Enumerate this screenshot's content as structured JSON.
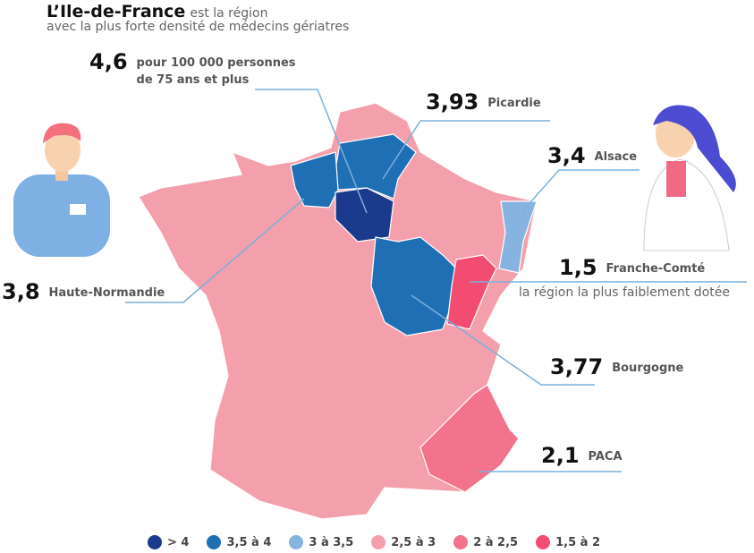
{
  "header": {
    "highlight": "L’Ile-de-France",
    "rest": "est la région",
    "subtitle": "avec la plus forte densité de médecins gériatres"
  },
  "callouts": [
    {
      "value": "4,6",
      "label": [
        "pour 100 000 personnes",
        "de 75 ans et plus"
      ]
    },
    {
      "value": "3,93",
      "label": [
        "Picardie"
      ]
    },
    {
      "value": "3,4",
      "label": [
        "Alsace"
      ]
    },
    {
      "value": "3,8",
      "label": [
        "Haute-Normandie"
      ]
    },
    {
      "value": "1,5",
      "label": [
        "Franche-Comté"
      ],
      "note": "la région la plus faiblement dotée"
    },
    {
      "value": "3,77",
      "label": [
        "Bourgogne"
      ]
    },
    {
      "value": "2,1",
      "label": [
        "PACA"
      ]
    }
  ],
  "legend": [
    {
      "label": "> 4",
      "color": "#1b3a8c"
    },
    {
      "label": "3,5 à 4",
      "color": "#1f6fb5"
    },
    {
      "label": "3 à 3,5",
      "color": "#86b3e0"
    },
    {
      "label": "2,5 à 3",
      "color": "#f4a0ac"
    },
    {
      "label": "2 à 2,5",
      "color": "#f2738b"
    },
    {
      "label": "1,5 à 2",
      "color": "#f24c72"
    }
  ]
}
